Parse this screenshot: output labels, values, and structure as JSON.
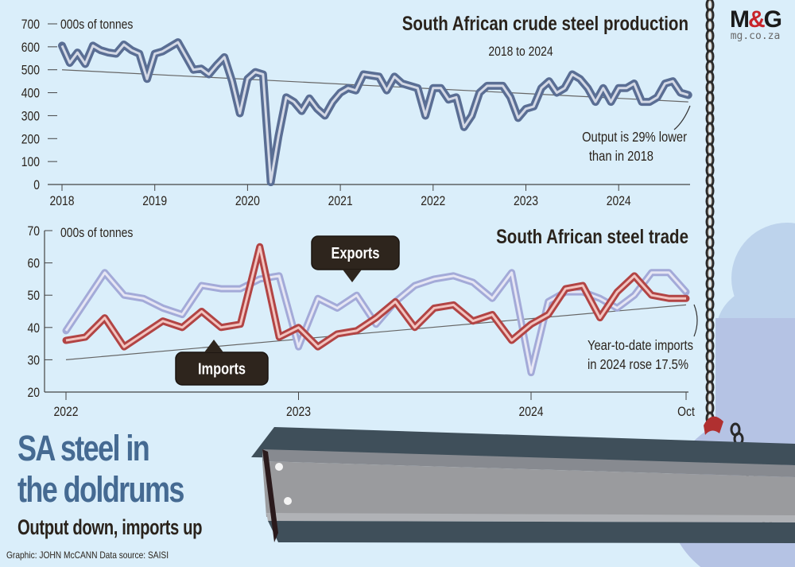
{
  "logo": {
    "brand_left": "M",
    "brand_amp": "&",
    "brand_right": "G",
    "url": "mg.co.za"
  },
  "headline": {
    "line1": "SA steel in",
    "line2": "the doldrums",
    "subhead": "Output down, imports up"
  },
  "credit": "Graphic: JOHN McCANN  Data source: SAISI",
  "colors": {
    "background": "#daeefa",
    "production": "#5a6e94",
    "exports": "#a3aad8",
    "imports": "#b24444",
    "headline": "#456a92"
  },
  "chart_data": [
    {
      "type": "line",
      "title": "South African crude steel production",
      "subtitle": "2018 to 2024",
      "ylabel": "000s of tonnes",
      "ylim": [
        0,
        700
      ],
      "yticks": [
        0,
        100,
        200,
        300,
        400,
        500,
        600,
        700
      ],
      "xticks": [
        "2018",
        "2019",
        "2020",
        "2021",
        "2022",
        "2023",
        "2024"
      ],
      "x_start": "2018-01",
      "x_frequency": "monthly",
      "annotation": "Output is 29% lower than in 2018",
      "annotation_lines": [
        "Output is 29% lower",
        "than in 2018"
      ],
      "trend_line": {
        "start": 500,
        "end": 360
      },
      "series": [
        {
          "values": [
            605,
            530,
            575,
            525,
            605,
            585,
            575,
            570,
            610,
            585,
            570,
            460,
            570,
            580,
            600,
            620,
            560,
            500,
            505,
            480,
            520,
            555,
            450,
            310,
            460,
            490,
            480,
            10,
            210,
            380,
            360,
            320,
            375,
            330,
            300,
            360,
            400,
            420,
            410,
            480,
            475,
            470,
            410,
            470,
            440,
            430,
            420,
            300,
            420,
            420,
            370,
            380,
            250,
            300,
            400,
            430,
            430,
            430,
            380,
            290,
            330,
            340,
            420,
            450,
            400,
            420,
            480,
            460,
            420,
            360,
            420,
            360,
            420,
            420,
            440,
            360,
            360,
            380,
            440,
            450,
            400,
            390
          ]
        }
      ]
    },
    {
      "type": "line",
      "title": "South African steel trade",
      "ylabel": "000s of tonnes",
      "ylim": [
        20,
        70
      ],
      "yticks": [
        20,
        30,
        40,
        50,
        60,
        70
      ],
      "xticks": [
        "2022",
        "2023",
        "2024",
        "Oct"
      ],
      "x_start": "2022-01",
      "x_end": "2024-10",
      "x_frequency": "monthly",
      "annotation": "Year-to-date imports in 2024 rose 17.5%",
      "annotation_lines": [
        "Year-to-date imports",
        "in 2024 rose 17.5%"
      ],
      "trend_line": {
        "series": "Imports",
        "start": 30,
        "end": 47
      },
      "series": [
        {
          "name": "Exports",
          "values": [
            39,
            48,
            57,
            50,
            49,
            46,
            44,
            53,
            52,
            52,
            55,
            56,
            34,
            49,
            46,
            50,
            41,
            48,
            53,
            55,
            56,
            54,
            49,
            57,
            26,
            48,
            51,
            51,
            49,
            46,
            50,
            57,
            57,
            51
          ]
        },
        {
          "name": "Imports",
          "values": [
            36,
            37,
            43,
            34,
            38,
            42,
            40,
            45,
            40,
            41,
            65,
            37,
            40,
            34,
            38,
            39,
            43,
            48,
            40,
            46,
            47,
            42,
            44,
            36,
            41,
            44,
            52,
            53,
            43,
            51,
            56,
            50,
            49,
            49
          ]
        }
      ]
    }
  ]
}
